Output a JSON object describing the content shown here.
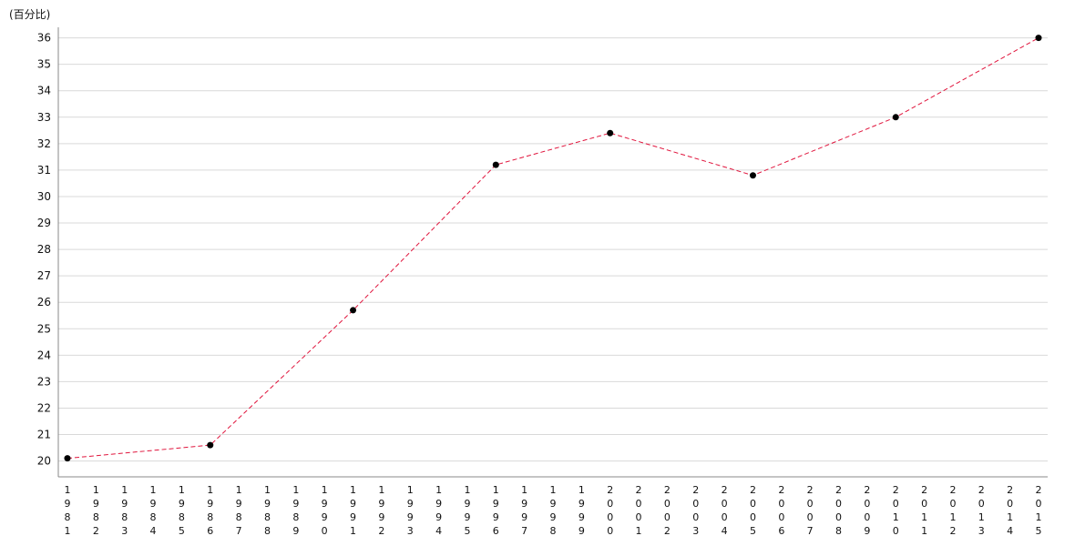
{
  "chart_data": {
    "type": "line",
    "ylabel": "(百分比)",
    "categories": [
      "1981",
      "1982",
      "1983",
      "1984",
      "1985",
      "1986",
      "1987",
      "1988",
      "1989",
      "1990",
      "1991",
      "1992",
      "1993",
      "1994",
      "1995",
      "1996",
      "1997",
      "1998",
      "1999",
      "2000",
      "2001",
      "2002",
      "2003",
      "2004",
      "2005",
      "2006",
      "2007",
      "2008",
      "2009",
      "2010",
      "2011",
      "2012",
      "2013",
      "2014",
      "2015"
    ],
    "series": [
      {
        "points": [
          {
            "x": "1981",
            "y": 20.1
          },
          {
            "x": "1986",
            "y": 20.6
          },
          {
            "x": "1991",
            "y": 25.7
          },
          {
            "x": "1996",
            "y": 31.2
          },
          {
            "x": "2000",
            "y": 32.4
          },
          {
            "x": "2005",
            "y": 30.8
          },
          {
            "x": "2010",
            "y": 33.0
          },
          {
            "x": "2015",
            "y": 36.0
          }
        ],
        "line_color": "#e0143c",
        "line_style": "dashed",
        "marker_color": "#000000"
      }
    ],
    "yticks": [
      20,
      21,
      22,
      23,
      24,
      25,
      26,
      27,
      28,
      29,
      30,
      31,
      32,
      33,
      34,
      35,
      36
    ],
    "ylim": [
      19.4,
      36.4
    ],
    "grid": true,
    "legend": "none"
  }
}
